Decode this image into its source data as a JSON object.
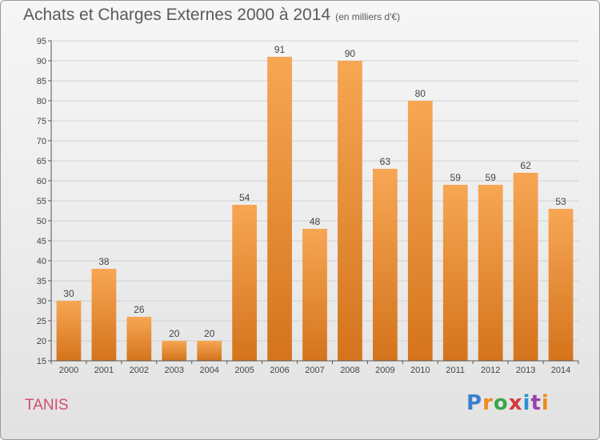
{
  "header": {
    "title": "Achats et Charges Externes 2000 à 2014",
    "unit": "(en milliers d'€)"
  },
  "footer": {
    "place": "TANIS",
    "logo": {
      "letters": [
        "P",
        "r",
        "o",
        "x",
        "i",
        "t",
        "i"
      ],
      "colors": [
        "#3a7fd0",
        "#f08a1c",
        "#3aa64a",
        "#d8383b",
        "#2f8fd6",
        "#9a3fb0",
        "#f08a1c"
      ]
    }
  },
  "chart_data": {
    "type": "bar",
    "title": "Achats et Charges Externes 2000 à 2014",
    "subtitle": "(en milliers d'€)",
    "categories": [
      "2000",
      "2001",
      "2002",
      "2003",
      "2004",
      "2005",
      "2006",
      "2007",
      "2008",
      "2009",
      "2010",
      "2011",
      "2012",
      "2013",
      "2014"
    ],
    "values": [
      30,
      38,
      26,
      20,
      20,
      54,
      91,
      48,
      90,
      63,
      80,
      59,
      59,
      62,
      53
    ],
    "ylim": [
      15,
      95
    ],
    "yticks": [
      15,
      20,
      25,
      30,
      35,
      40,
      45,
      50,
      55,
      60,
      65,
      70,
      75,
      80,
      85,
      90,
      95
    ],
    "grid": true,
    "legend": "none",
    "colors": {
      "bar_top": "#f7a654",
      "bar_bottom": "#d4741c",
      "grid": "#d2d2d2",
      "axis": "#555555"
    }
  }
}
